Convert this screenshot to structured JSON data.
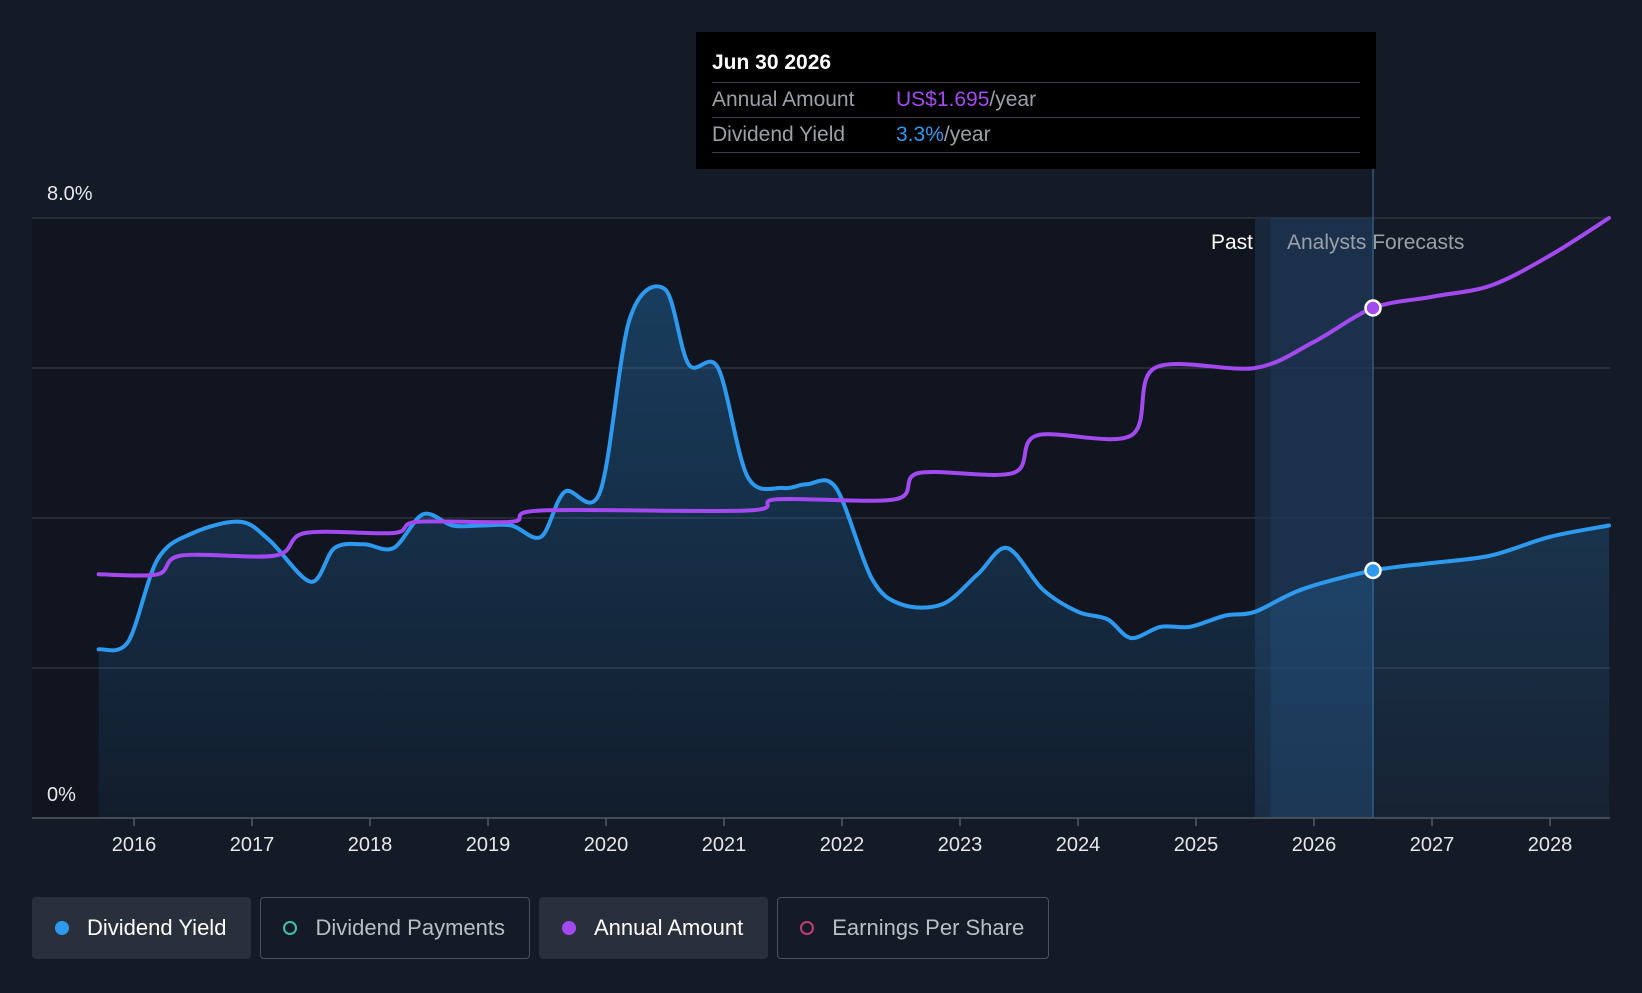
{
  "tooltip": {
    "date": "Jun 30 2026",
    "rows": [
      {
        "label": "Annual Amount",
        "value": "US$1.695",
        "unit": "/year",
        "color": "#a349f0"
      },
      {
        "label": "Dividend Yield",
        "value": "3.3%",
        "unit": "/year",
        "color": "#2d9af0"
      }
    ]
  },
  "legend": [
    {
      "label": "Dividend Yield",
      "color": "#2d9af0",
      "active": true
    },
    {
      "label": "Dividend Payments",
      "color": "#3ec1b0",
      "active": false
    },
    {
      "label": "Annual Amount",
      "color": "#a349f0",
      "active": true
    },
    {
      "label": "Earnings Per Share",
      "color": "#c23d75",
      "active": false
    }
  ],
  "chart_data": {
    "type": "line",
    "regions": {
      "past_label": "Past",
      "forecast_label": "Analysts Forecasts"
    },
    "y_axis": {
      "min": 0,
      "max": 8.0,
      "unit": "%",
      "tick_labels": [
        "0%",
        "8.0%"
      ],
      "grid_values": [
        0,
        2,
        4,
        6,
        8
      ]
    },
    "x_axis": {
      "min": 2015.0,
      "max": 2028.5,
      "ticks": [
        2016,
        2017,
        2018,
        2019,
        2020,
        2021,
        2022,
        2023,
        2024,
        2025,
        2026,
        2027,
        2028
      ]
    },
    "past_end": 2025.5,
    "forecast_band_start": 2025.63,
    "marker_x": 2026.5,
    "series": [
      {
        "name": "Dividend Yield",
        "color": "#2d9af0",
        "fill": true,
        "points": [
          [
            2015.7,
            2.25
          ],
          [
            2015.95,
            2.35
          ],
          [
            2016.2,
            3.45
          ],
          [
            2016.5,
            3.8
          ],
          [
            2016.9,
            3.95
          ],
          [
            2017.15,
            3.7
          ],
          [
            2017.5,
            3.15
          ],
          [
            2017.7,
            3.6
          ],
          [
            2017.95,
            3.65
          ],
          [
            2018.2,
            3.6
          ],
          [
            2018.45,
            4.05
          ],
          [
            2018.7,
            3.9
          ],
          [
            2018.95,
            3.9
          ],
          [
            2019.2,
            3.9
          ],
          [
            2019.45,
            3.75
          ],
          [
            2019.65,
            4.35
          ],
          [
            2019.95,
            4.35
          ],
          [
            2020.2,
            6.65
          ],
          [
            2020.5,
            7.05
          ],
          [
            2020.7,
            6.05
          ],
          [
            2020.95,
            6.0
          ],
          [
            2021.2,
            4.55
          ],
          [
            2021.5,
            4.4
          ],
          [
            2021.7,
            4.45
          ],
          [
            2021.95,
            4.4
          ],
          [
            2022.25,
            3.2
          ],
          [
            2022.5,
            2.85
          ],
          [
            2022.85,
            2.85
          ],
          [
            2023.15,
            3.25
          ],
          [
            2023.4,
            3.6
          ],
          [
            2023.7,
            3.05
          ],
          [
            2024.0,
            2.75
          ],
          [
            2024.25,
            2.65
          ],
          [
            2024.45,
            2.4
          ],
          [
            2024.7,
            2.55
          ],
          [
            2024.95,
            2.55
          ],
          [
            2025.25,
            2.7
          ],
          [
            2025.5,
            2.75
          ],
          [
            2025.9,
            3.05
          ],
          [
            2026.5,
            3.3
          ],
          [
            2027.0,
            3.4
          ],
          [
            2027.5,
            3.5
          ],
          [
            2028.0,
            3.75
          ],
          [
            2028.5,
            3.9
          ]
        ]
      },
      {
        "name": "Annual Amount",
        "color": "#a349f0",
        "fill": false,
        "points": [
          [
            2015.7,
            3.25
          ],
          [
            2016.2,
            3.25
          ],
          [
            2016.4,
            3.5
          ],
          [
            2017.2,
            3.5
          ],
          [
            2017.45,
            3.8
          ],
          [
            2018.2,
            3.8
          ],
          [
            2018.4,
            3.95
          ],
          [
            2019.2,
            3.95
          ],
          [
            2019.45,
            4.1
          ],
          [
            2021.2,
            4.1
          ],
          [
            2021.45,
            4.25
          ],
          [
            2022.45,
            4.25
          ],
          [
            2022.65,
            4.6
          ],
          [
            2023.45,
            4.6
          ],
          [
            2023.65,
            5.1
          ],
          [
            2024.45,
            5.1
          ],
          [
            2024.65,
            6.0
          ],
          [
            2025.5,
            6.0
          ],
          [
            2026.0,
            6.35
          ],
          [
            2026.5,
            6.8
          ],
          [
            2027.0,
            6.95
          ],
          [
            2027.5,
            7.1
          ],
          [
            2028.0,
            7.5
          ],
          [
            2028.5,
            8.0
          ]
        ]
      }
    ]
  }
}
